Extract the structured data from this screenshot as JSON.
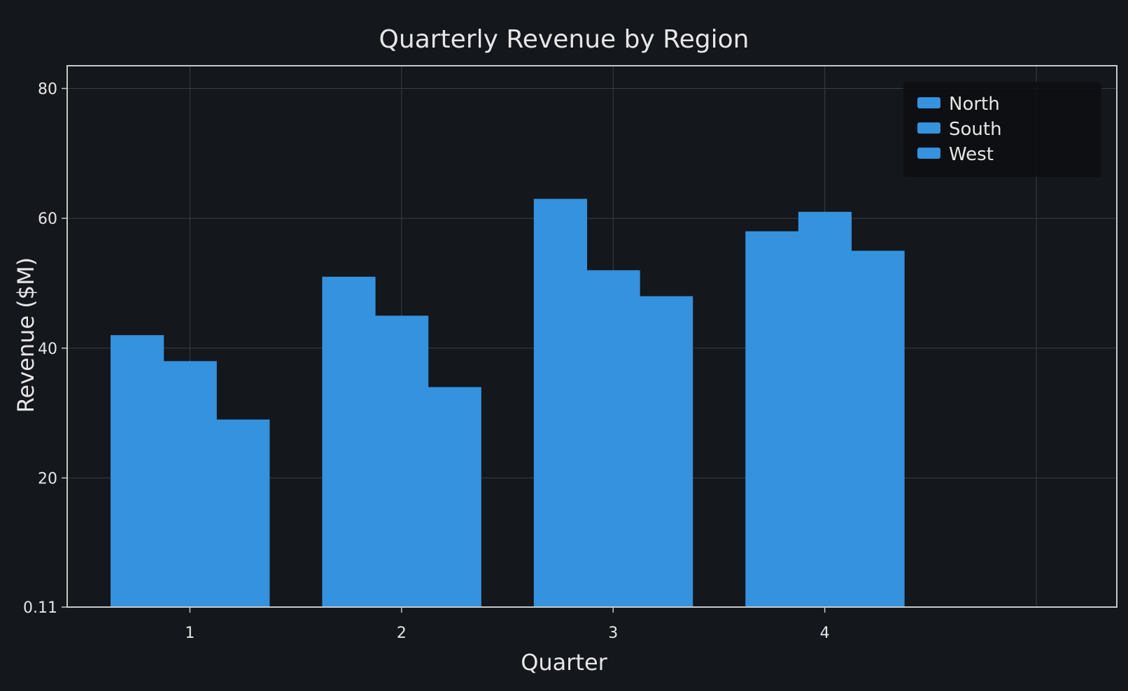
{
  "chart_data": {
    "type": "bar",
    "title": "Quarterly Revenue by Region",
    "xlabel": "Quarter",
    "ylabel": "Revenue ($M)",
    "categories": [
      "1",
      "2",
      "3",
      "4"
    ],
    "series": [
      {
        "name": "North",
        "values": [
          42,
          51,
          63,
          58
        ]
      },
      {
        "name": "South",
        "values": [
          38,
          45,
          52,
          61
        ]
      },
      {
        "name": "West",
        "values": [
          29,
          34,
          48,
          55
        ]
      }
    ],
    "x_range": [
      0.42,
      5.38
    ],
    "ylim": [
      0.11,
      83.5
    ],
    "yticks": [
      {
        "value": 0.11,
        "label": "0.11"
      },
      {
        "value": 20,
        "label": "20"
      },
      {
        "value": 40,
        "label": "40"
      },
      {
        "value": 60,
        "label": "60"
      },
      {
        "value": 80,
        "label": "80"
      }
    ],
    "xtick_values": [
      1,
      2,
      3,
      4
    ],
    "x_gridlines": [
      1,
      2,
      3,
      4,
      5
    ],
    "grid": true,
    "legend_position": "top-right",
    "colors": {
      "background": "#14171c",
      "bar": "#3492de",
      "grid": "#3a3f46",
      "frame": "#c8c8c8",
      "text": "#e6e6e6",
      "legend_bg": "#0c0e11"
    }
  }
}
